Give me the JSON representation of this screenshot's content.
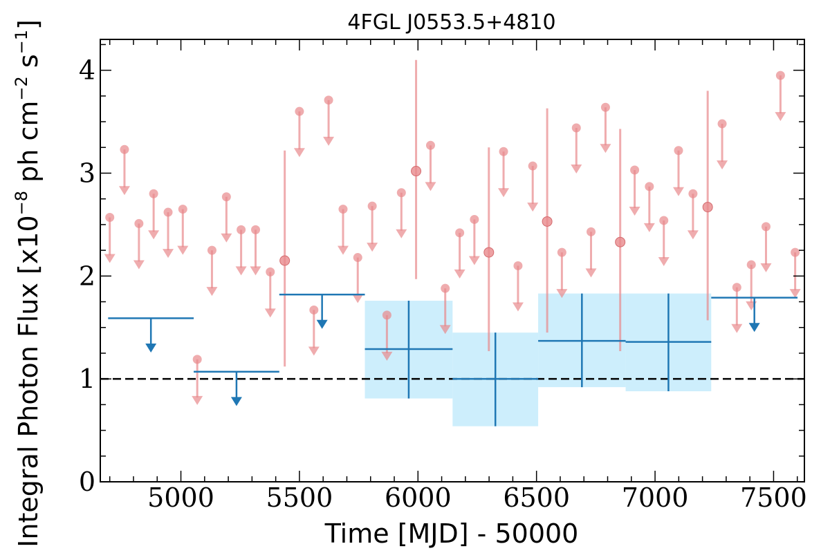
{
  "chart_data": {
    "type": "scatter",
    "title": "4FGL J0553.5+4810",
    "xlabel": "Time [MJD] - 50000",
    "ylabel": "Integral Photon Flux [x10",
    "ylabel_exp": "−8",
    "ylabel_mid": " ph cm",
    "ylabel_exp2": "−2",
    "ylabel_mid2": " s",
    "ylabel_exp3": "−1",
    "ylabel_end": "]",
    "xlim": [
      4660,
      7630
    ],
    "ylim": [
      0,
      4.3
    ],
    "xticks": [
      {
        "value": 5000,
        "label": "5000"
      },
      {
        "value": 5500,
        "label": "5500"
      },
      {
        "value": 6000,
        "label": "6000"
      },
      {
        "value": 6500,
        "label": "6500"
      },
      {
        "value": 7000,
        "label": "7000"
      },
      {
        "value": 7500,
        "label": "7500"
      }
    ],
    "yticks": [
      {
        "value": 0,
        "label": "0"
      },
      {
        "value": 1,
        "label": "1"
      },
      {
        "value": 2,
        "label": "2"
      },
      {
        "value": 3,
        "label": "3"
      },
      {
        "value": 4,
        "label": "4"
      }
    ],
    "reference_line": 1.0,
    "colors": {
      "short_bins": "#e8898c",
      "long_bins": "#1f77b4",
      "band": "#cdeefc",
      "reference": "#000000"
    },
    "short_bin_upper_limits": [
      {
        "x": 4700,
        "y": 2.57
      },
      {
        "x": 4762,
        "y": 3.23
      },
      {
        "x": 4823,
        "y": 2.51
      },
      {
        "x": 4885,
        "y": 2.8
      },
      {
        "x": 4946,
        "y": 2.62
      },
      {
        "x": 5008,
        "y": 2.65
      },
      {
        "x": 5069,
        "y": 1.19
      },
      {
        "x": 5131,
        "y": 2.25
      },
      {
        "x": 5192,
        "y": 2.77
      },
      {
        "x": 5254,
        "y": 2.45
      },
      {
        "x": 5315,
        "y": 2.45
      },
      {
        "x": 5377,
        "y": 2.04
      },
      {
        "x": 5500,
        "y": 3.6
      },
      {
        "x": 5561,
        "y": 1.67
      },
      {
        "x": 5623,
        "y": 3.71
      },
      {
        "x": 5684,
        "y": 2.65
      },
      {
        "x": 5746,
        "y": 2.18
      },
      {
        "x": 5807,
        "y": 2.68
      },
      {
        "x": 5869,
        "y": 1.62
      },
      {
        "x": 5930,
        "y": 2.81
      },
      {
        "x": 6053,
        "y": 3.27
      },
      {
        "x": 6115,
        "y": 1.88
      },
      {
        "x": 6176,
        "y": 2.42
      },
      {
        "x": 6238,
        "y": 2.55
      },
      {
        "x": 6361,
        "y": 3.21
      },
      {
        "x": 6422,
        "y": 2.1
      },
      {
        "x": 6484,
        "y": 3.07
      },
      {
        "x": 6607,
        "y": 2.23
      },
      {
        "x": 6668,
        "y": 3.44
      },
      {
        "x": 6730,
        "y": 2.43
      },
      {
        "x": 6791,
        "y": 3.64
      },
      {
        "x": 6914,
        "y": 3.03
      },
      {
        "x": 6976,
        "y": 2.87
      },
      {
        "x": 7037,
        "y": 2.54
      },
      {
        "x": 7099,
        "y": 3.22
      },
      {
        "x": 7160,
        "y": 2.8
      },
      {
        "x": 7283,
        "y": 3.48
      },
      {
        "x": 7345,
        "y": 1.89
      },
      {
        "x": 7406,
        "y": 2.11
      },
      {
        "x": 7468,
        "y": 2.48
      },
      {
        "x": 7529,
        "y": 3.95
      },
      {
        "x": 7591,
        "y": 2.23
      }
    ],
    "short_bin_detections": [
      {
        "x": 5438,
        "y": 2.15,
        "ylo": 1.12,
        "yhi": 3.22
      },
      {
        "x": 5992,
        "y": 3.02,
        "ylo": 1.97,
        "yhi": 4.1
      },
      {
        "x": 6299,
        "y": 2.23,
        "ylo": 1.27,
        "yhi": 3.25
      },
      {
        "x": 6545,
        "y": 2.53,
        "ylo": 1.45,
        "yhi": 3.63
      },
      {
        "x": 6853,
        "y": 2.33,
        "ylo": 1.27,
        "yhi": 3.43
      },
      {
        "x": 7222,
        "y": 2.67,
        "ylo": 1.57,
        "yhi": 3.8
      }
    ],
    "long_bin_upper_limits": [
      {
        "x0": 4693,
        "x1": 5054,
        "y": 1.59
      },
      {
        "x0": 5054,
        "x1": 5415,
        "y": 1.07
      },
      {
        "x0": 5415,
        "x1": 5776,
        "y": 1.82
      },
      {
        "x0": 7237,
        "x1": 7601,
        "y": 1.79
      }
    ],
    "long_bin_detections": [
      {
        "x0": 5776,
        "x1": 6146,
        "y": 1.29,
        "ylo": 0.81,
        "yhi": 1.76
      },
      {
        "x0": 6146,
        "x1": 6507,
        "y": 1.0,
        "ylo": 0.54,
        "yhi": 1.45
      },
      {
        "x0": 6507,
        "x1": 6876,
        "y": 1.37,
        "ylo": 0.92,
        "yhi": 1.83
      },
      {
        "x0": 6876,
        "x1": 7237,
        "y": 1.36,
        "ylo": 0.88,
        "yhi": 1.83
      }
    ]
  }
}
